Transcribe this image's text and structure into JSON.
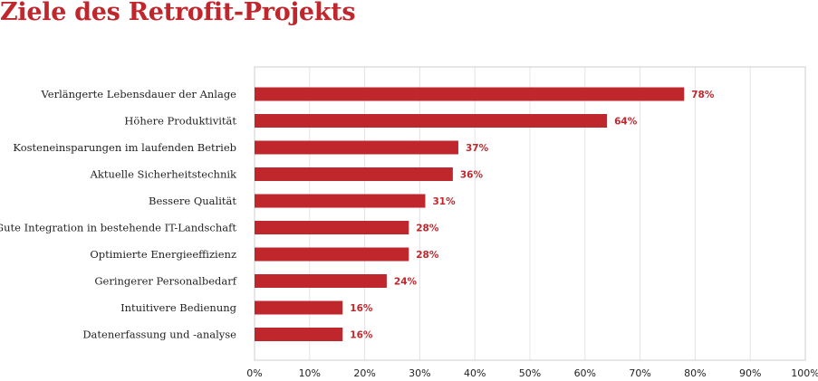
{
  "chart_data": {
    "type": "bar",
    "orientation": "horizontal",
    "title": "Ziele des Retrofit-Projekts",
    "categories": [
      "Verlängerte Lebensdauer der Anlage",
      "Höhere Produktivität",
      "Kosteneinsparungen im laufenden Betrieb",
      "Aktuelle Sicherheitstechnik",
      "Bessere Qualität",
      "Gute Integration in bestehende IT-Landschaft",
      "Optimierte Energieeffizienz",
      "Geringerer Personalbedarf",
      "Intuitivere Bedienung",
      "Datenerfassung und -analyse"
    ],
    "values": [
      78,
      64,
      37,
      36,
      31,
      28,
      28,
      24,
      16,
      16
    ],
    "value_labels": [
      "78%",
      "64%",
      "37%",
      "36%",
      "31%",
      "28%",
      "28%",
      "24%",
      "16%",
      "16%"
    ],
    "xlim": [
      0,
      100
    ],
    "x_ticks": [
      "0%",
      "10%",
      "20%",
      "30%",
      "40%",
      "50%",
      "60%",
      "70%",
      "80%",
      "90%",
      "100%"
    ],
    "grid": true,
    "colors": {
      "bar": "#c0272d",
      "title": "#c0272d",
      "value_label": "#c0272d",
      "grid": "#e4e4e4",
      "frame": "#cfcfcf"
    }
  }
}
